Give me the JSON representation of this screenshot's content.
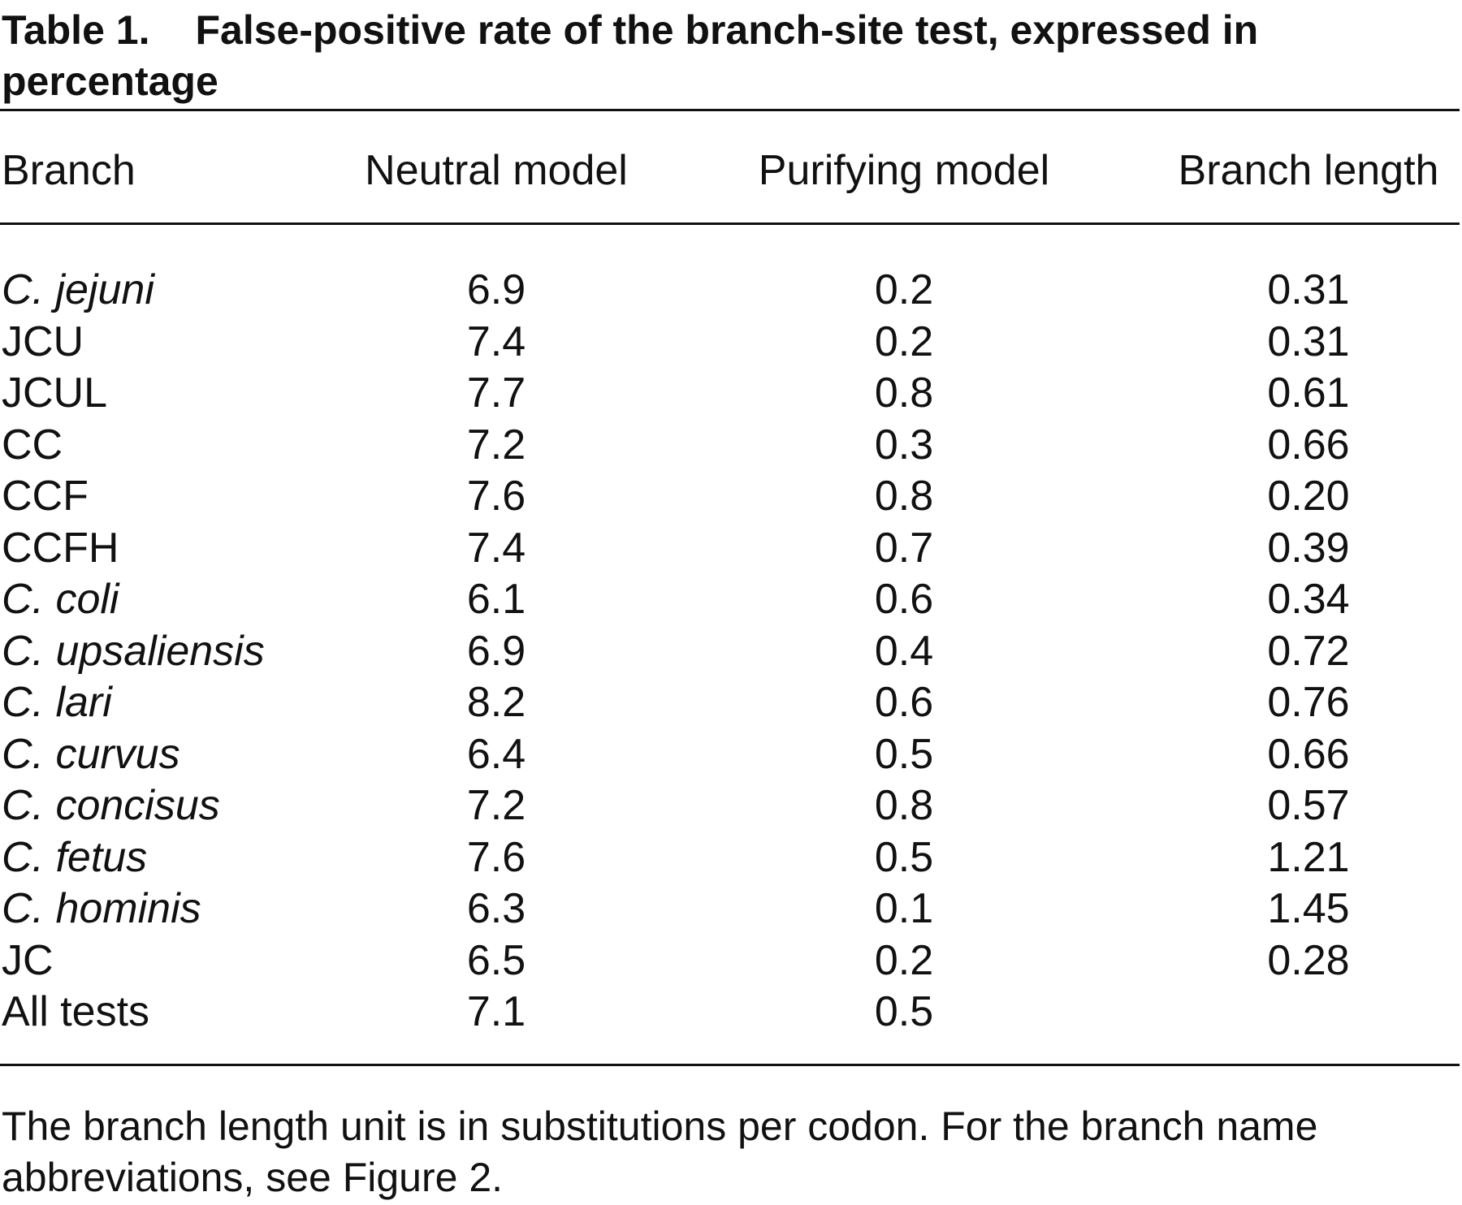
{
  "table": {
    "label": "Table 1.",
    "title": "False-positive rate of the branch-site test, expressed in percentage",
    "columns": [
      "Branch",
      "Neutral model",
      "Purifying model",
      "Branch length"
    ],
    "rows": [
      [
        "C. jejuni",
        "6.9",
        "0.2",
        "0.31"
      ],
      [
        "JCU",
        "7.4",
        "0.2",
        "0.31"
      ],
      [
        "JCUL",
        "7.7",
        "0.8",
        "0.61"
      ],
      [
        "CC",
        "7.2",
        "0.3",
        "0.66"
      ],
      [
        "CCF",
        "7.6",
        "0.8",
        "0.20"
      ],
      [
        "CCFH",
        "7.4",
        "0.7",
        "0.39"
      ],
      [
        "C. coli",
        "6.1",
        "0.6",
        "0.34"
      ],
      [
        "C. upsaliensis",
        "6.9",
        "0.4",
        "0.72"
      ],
      [
        "C. lari",
        "8.2",
        "0.6",
        "0.76"
      ],
      [
        "C. curvus",
        "6.4",
        "0.5",
        "0.66"
      ],
      [
        "C. concisus",
        "7.2",
        "0.8",
        "0.57"
      ],
      [
        "C. fetus",
        "7.6",
        "0.5",
        "1.21"
      ],
      [
        "C. hominis",
        "6.3",
        "0.1",
        "1.45"
      ],
      [
        "JC",
        "6.5",
        "0.2",
        "0.28"
      ],
      [
        "All tests",
        "7.1",
        "0.5"
      ]
    ],
    "footnote": "The branch length unit is in substitutions per codon. For the branch name abbreviations, see Figure 2."
  }
}
